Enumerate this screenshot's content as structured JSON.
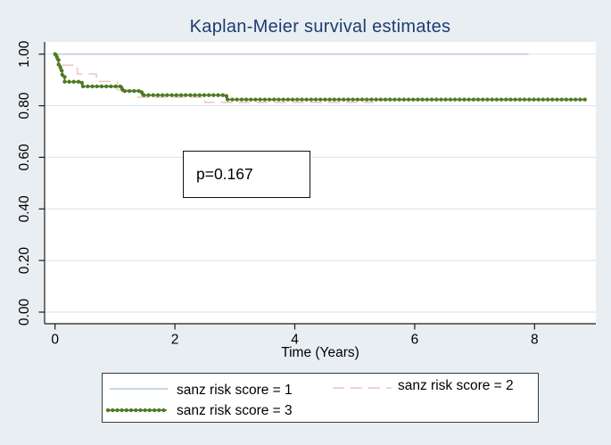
{
  "chart_data": {
    "type": "line",
    "chart_style": "kaplan-meier-step",
    "title": "Kaplan-Meier survival estimates",
    "xlabel": "Time (Years)",
    "ylabel": "",
    "xlim": [
      0,
      9.02
    ],
    "ylim": [
      0,
      1.05
    ],
    "xticks": [
      0,
      2,
      4,
      6,
      8
    ],
    "xtick_labels": [
      "0",
      "2",
      "4",
      "6",
      "8"
    ],
    "yticks": [
      0.0,
      0.2,
      0.4,
      0.6,
      0.8,
      1.0
    ],
    "ytick_labels": [
      "0.00",
      "0.20",
      "0.40",
      "0.60",
      "0.80",
      "1.00"
    ],
    "grid": "horizontal",
    "legend_position": "bottom",
    "annotation": {
      "text": "p=0.167"
    },
    "series": [
      {
        "name": "sanz risk score = 1",
        "line_style": "solid-thin",
        "color": "#b7c8da",
        "points": [
          [
            0,
            1.0
          ],
          [
            7.9,
            1.0
          ]
        ]
      },
      {
        "name": "sanz risk score = 2",
        "line_style": "dashed",
        "color": "#e9c6bf",
        "points": [
          [
            0,
            1.0
          ],
          [
            0.05,
            0.957
          ],
          [
            0.37,
            0.923
          ],
          [
            0.69,
            0.894
          ],
          [
            1.04,
            0.861
          ],
          [
            1.38,
            0.833
          ],
          [
            2.5,
            0.813
          ],
          [
            5.32,
            0.813
          ]
        ]
      },
      {
        "name": "sanz risk score = 3",
        "line_style": "dotted-markers",
        "color": "#4e7a25",
        "points": [
          [
            0,
            1.0
          ],
          [
            0.03,
            0.978
          ],
          [
            0.06,
            0.957
          ],
          [
            0.09,
            0.936
          ],
          [
            0.12,
            0.915
          ],
          [
            0.16,
            0.893
          ],
          [
            0.45,
            0.875
          ],
          [
            1.12,
            0.857
          ],
          [
            1.45,
            0.841
          ],
          [
            2.86,
            0.824
          ],
          [
            8.87,
            0.824
          ]
        ]
      }
    ],
    "colors": {
      "background": "#e9eef3",
      "plot_bg": "#ffffff",
      "grid": "#dbe6f1",
      "axis": "#1a1a1a",
      "tick_text": "#000000",
      "title": "#1e3d6e",
      "annotation_border": "#111111",
      "legend_border": "#3a3a3a"
    }
  }
}
